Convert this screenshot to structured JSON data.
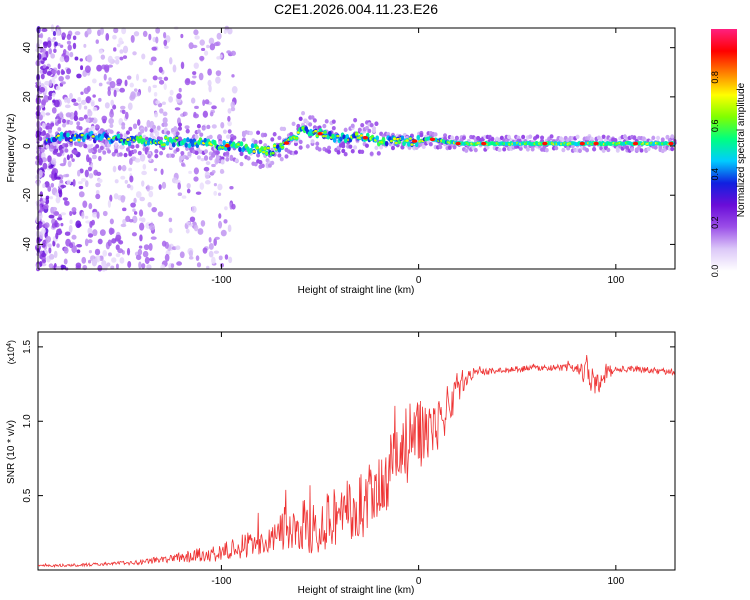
{
  "figure": {
    "title": "C2E1.2026.004.11.23.E26"
  },
  "chart_data": [
    {
      "type": "heatmap",
      "title": "C2E1.2026.004.11.23.E26",
      "xlabel": "Height of straight line (km)",
      "ylabel": "Frequency (Hz)",
      "xlim": [
        -193,
        130
      ],
      "ylim": [
        -50,
        48
      ],
      "xticks": [
        -100,
        0,
        100
      ],
      "yticks": [
        -40,
        -20,
        0,
        20,
        40
      ],
      "xtick_labels": [
        "-100",
        "0",
        "100"
      ],
      "ytick_labels": [
        "-40",
        "-20",
        "0",
        "20",
        "40"
      ],
      "colorbar": {
        "label": "Normalized spectral amplitude",
        "range": [
          0,
          1
        ],
        "ticks": [
          "0.0",
          "0.2",
          "0.4",
          "0.6",
          "0.8"
        ],
        "tick_values": [
          0.0,
          0.2,
          0.4,
          0.6,
          0.8
        ],
        "colors": [
          "#ffffff",
          "#dcc8f8",
          "#9b4fe8",
          "#6a0dd8",
          "#1020e0",
          "#00ccff",
          "#00ff80",
          "#80ff00",
          "#ffff00",
          "#ff8000",
          "#ff0000",
          "#ff2080"
        ]
      },
      "ridge": {
        "x": [
          -190,
          -170,
          -155,
          -140,
          -125,
          -110,
          -95,
          -85,
          -75,
          -65,
          -58,
          -50,
          -40,
          -30,
          -20,
          -10,
          0,
          5,
          20,
          40,
          60,
          80,
          90,
          100,
          130
        ],
        "frequency": [
          3,
          4,
          3,
          2,
          2,
          1,
          0,
          -1,
          -2,
          2,
          7,
          5,
          3,
          4,
          2,
          2,
          2,
          3,
          1,
          1,
          1,
          1,
          1,
          1,
          1
        ],
        "peak_x": [
          -97,
          -67,
          -50,
          -27,
          -2,
          7,
          20,
          33,
          64,
          83,
          90,
          110,
          128
        ]
      }
    },
    {
      "type": "line",
      "xlabel": "Height of straight line (km)",
      "ylabel": "SNR (10 * v/v)",
      "scale_label": "(x10",
      "scale_exp": "4",
      "scale_close": ")",
      "xlim": [
        -193,
        130
      ],
      "ylim": [
        0,
        1.6
      ],
      "xticks": [
        -100,
        0,
        100
      ],
      "yticks": [
        0.5,
        1.0,
        1.5
      ],
      "xtick_labels": [
        "-100",
        "0",
        "100"
      ],
      "ytick_labels": [
        "0.5",
        "1.0",
        "1.5"
      ],
      "color": "#ee3333",
      "series": [
        {
          "name": "SNR",
          "x": [
            -193,
            -180,
            -160,
            -145,
            -130,
            -120,
            -110,
            -100,
            -90,
            -80,
            -70,
            -60,
            -50,
            -40,
            -30,
            -20,
            -15,
            -10,
            -5,
            0,
            5,
            10,
            15,
            20,
            25,
            30,
            40,
            50,
            60,
            70,
            80,
            85,
            90,
            95,
            100,
            110,
            120,
            130
          ],
          "y": [
            0.03,
            0.03,
            0.04,
            0.05,
            0.07,
            0.09,
            0.1,
            0.12,
            0.15,
            0.2,
            0.24,
            0.28,
            0.32,
            0.38,
            0.42,
            0.5,
            0.6,
            0.75,
            0.85,
            0.9,
            0.95,
            1.0,
            1.1,
            1.2,
            1.3,
            1.33,
            1.34,
            1.35,
            1.36,
            1.36,
            1.36,
            1.33,
            1.3,
            1.33,
            1.35,
            1.35,
            1.34,
            1.33
          ],
          "noise": [
            0.005,
            0.01,
            0.01,
            0.015,
            0.025,
            0.035,
            0.05,
            0.06,
            0.08,
            0.1,
            0.14,
            0.18,
            0.2,
            0.22,
            0.24,
            0.26,
            0.3,
            0.3,
            0.28,
            0.25,
            0.2,
            0.2,
            0.15,
            0.08,
            0.04,
            0.025,
            0.02,
            0.02,
            0.02,
            0.02,
            0.03,
            0.1,
            0.14,
            0.06,
            0.02,
            0.02,
            0.02,
            0.02
          ]
        }
      ]
    }
  ]
}
